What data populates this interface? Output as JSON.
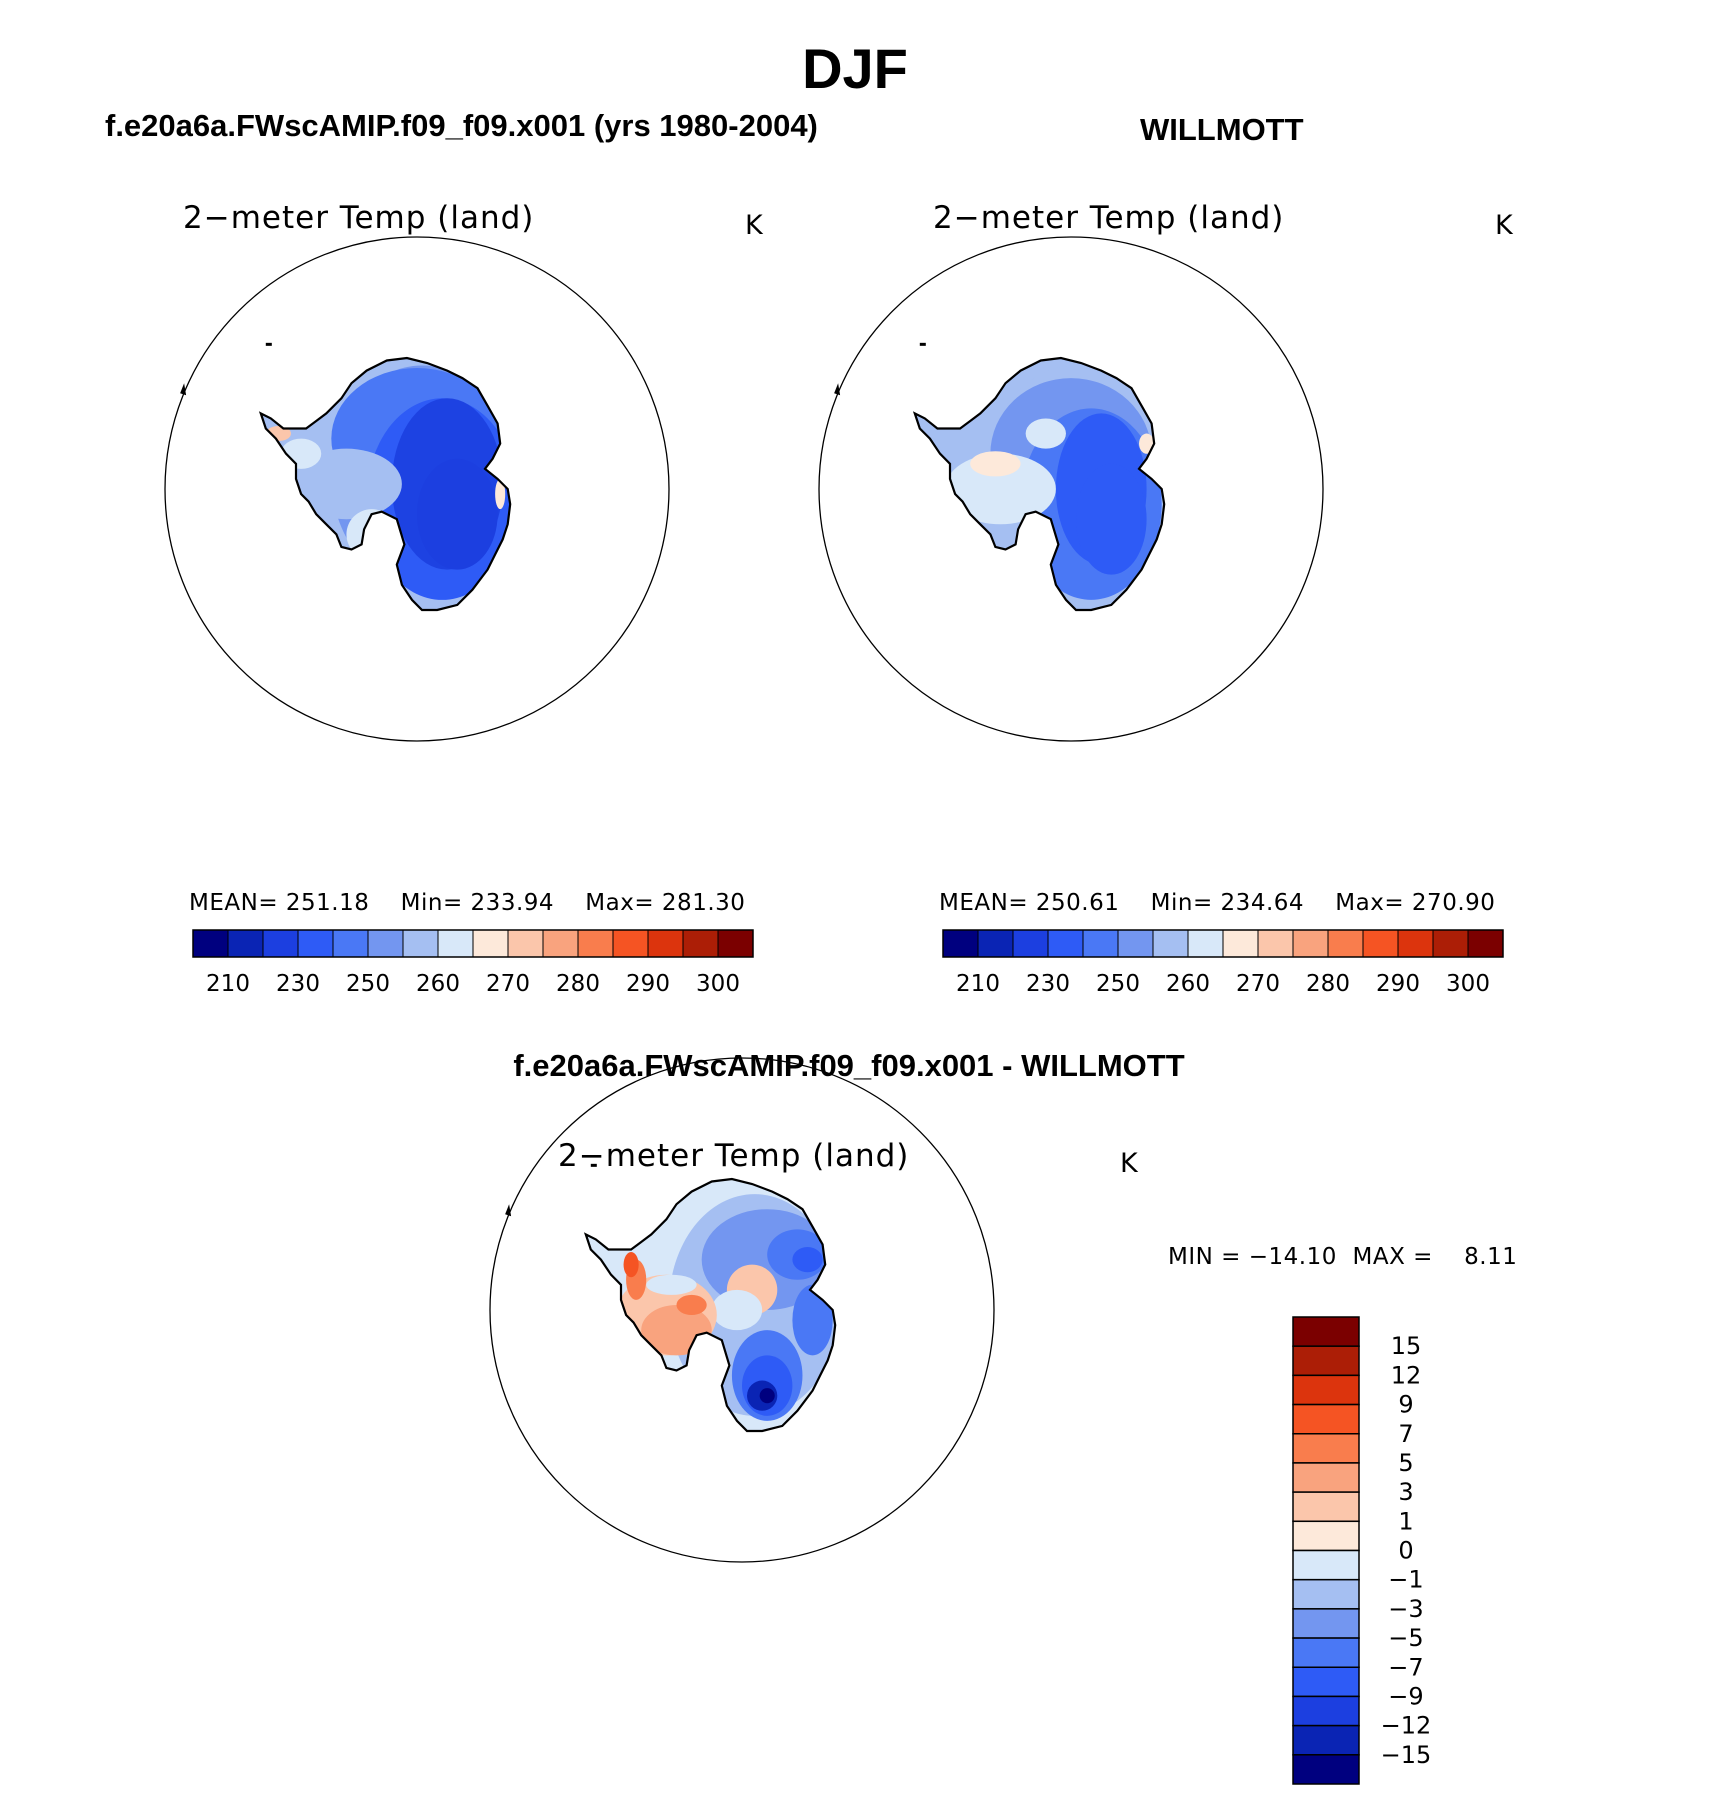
{
  "page_title": "DJF",
  "panels": [
    {
      "title": "f.e20a6a.FWscAMIP.f09_f09.x001 (yrs 1980-2004)",
      "variable": "2−meter Temp (land)",
      "units": "K",
      "stats": {
        "mean_label": "MEAN=",
        "mean": "251.18",
        "min_label": "Min=",
        "min": "233.94",
        "max_label": "Max=",
        "max": "281.30"
      }
    },
    {
      "title": "WILLMOTT",
      "variable": "2−meter Temp (land)",
      "units": "K",
      "stats": {
        "mean_label": "MEAN=",
        "mean": "250.61",
        "min_label": "Min=",
        "min": "234.64",
        "max_label": "Max=",
        "max": "270.90"
      }
    },
    {
      "title": "f.e20a6a.FWscAMIP.f09_f09.x001 - WILLMOTT",
      "variable": "2−meter Temp (land)",
      "units": "K",
      "stats": {
        "min_label": "MIN =",
        "min": "−14.10",
        "max_label": "MAX =",
        "max": "8.11"
      }
    }
  ],
  "chart_data": [
    {
      "type": "heatmap",
      "projection": "south-polar stereographic",
      "title": "f.e20a6a.FWscAMIP.f09_f09.x001 (yrs 1980-2004)",
      "field": "2−meter Temp (land)",
      "units": "K",
      "mean": 251.18,
      "min": 233.94,
      "max": 281.3,
      "colorbar": {
        "orientation": "horizontal",
        "ticks": [
          "210",
          "230",
          "250",
          "260",
          "270",
          "280",
          "290",
          "300"
        ],
        "colors": [
          "#00007f",
          "#0a24b4",
          "#1c3fe0",
          "#2e5bf6",
          "#4a78f5",
          "#7396f0",
          "#a5bff2",
          "#d8e8f9",
          "#fde9da",
          "#fbc6ab",
          "#f9a37e",
          "#f97d4d",
          "#f55423",
          "#dc340d",
          "#ac1e06",
          "#7b0000"
        ]
      }
    },
    {
      "type": "heatmap",
      "projection": "south-polar stereographic",
      "title": "WILLMOTT",
      "field": "2−meter Temp (land)",
      "units": "K",
      "mean": 250.61,
      "min": 234.64,
      "max": 270.9,
      "colorbar": {
        "orientation": "horizontal",
        "ticks": [
          "210",
          "230",
          "250",
          "260",
          "270",
          "280",
          "290",
          "300"
        ],
        "colors": [
          "#00007f",
          "#0a24b4",
          "#1c3fe0",
          "#2e5bf6",
          "#4a78f5",
          "#7396f0",
          "#a5bff2",
          "#d8e8f9",
          "#fde9da",
          "#fbc6ab",
          "#f9a37e",
          "#f97d4d",
          "#f55423",
          "#dc340d",
          "#ac1e06",
          "#7b0000"
        ]
      }
    },
    {
      "type": "heatmap",
      "projection": "south-polar stereographic",
      "title": "f.e20a6a.FWscAMIP.f09_f09.x001 - WILLMOTT",
      "field": "2−meter Temp (land)",
      "units": "K",
      "min": -14.1,
      "max": 8.11,
      "colorbar": {
        "orientation": "vertical",
        "ticks": [
          "15",
          "12",
          "9",
          "7",
          "5",
          "3",
          "1",
          "0",
          "−1",
          "−3",
          "−5",
          "−7",
          "−9",
          "−12",
          "−15"
        ],
        "colors": [
          "#7b0000",
          "#ac1e06",
          "#dc340d",
          "#f55423",
          "#f97d4d",
          "#f9a37e",
          "#fbc6ab",
          "#fde9da",
          "#d8e8f9",
          "#a5bff2",
          "#7396f0",
          "#4a78f5",
          "#2e5bf6",
          "#1c3fe0",
          "#0a24b4",
          "#00007f"
        ]
      }
    }
  ]
}
